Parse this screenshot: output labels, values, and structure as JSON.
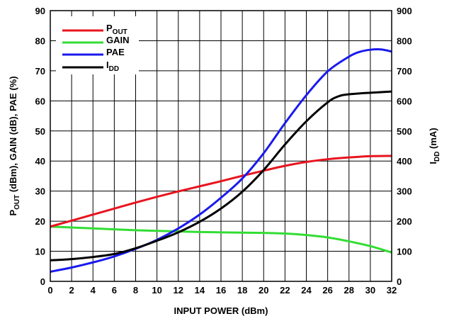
{
  "chart_data": {
    "type": "line",
    "xlabel": "INPUT POWER (dBm)",
    "ylabel_left": {
      "main": "P",
      "sub": "OUT",
      "rest": " (dBm), GAIN (dB), PAE (%)"
    },
    "ylabel_right": {
      "main": "I",
      "sub": "DD",
      "rest": " (mA)"
    },
    "xlim": [
      0,
      32
    ],
    "ylim_left": [
      0,
      90
    ],
    "ylim_right": [
      0,
      900
    ],
    "grid": true,
    "legend_position": "top-left",
    "x_ticks": [
      "0",
      "2",
      "4",
      "6",
      "8",
      "10",
      "12",
      "14",
      "16",
      "18",
      "20",
      "22",
      "24",
      "26",
      "28",
      "30",
      "32"
    ],
    "y_ticks_left": [
      "0",
      "10",
      "20",
      "30",
      "40",
      "50",
      "60",
      "70",
      "80",
      "90"
    ],
    "y_ticks_right": [
      "0",
      "100",
      "200",
      "300",
      "400",
      "500",
      "600",
      "700",
      "800",
      "900"
    ],
    "series": [
      {
        "name": "P",
        "name_sub": "OUT",
        "axis": "left",
        "color": "#e8141e",
        "x": [
          0,
          2,
          4,
          6,
          8,
          10,
          12,
          14,
          16,
          18,
          20,
          22,
          24,
          26,
          28,
          30,
          32
        ],
        "y": [
          18.2,
          20.2,
          22.2,
          24.2,
          26.2,
          28.1,
          29.9,
          31.6,
          33.3,
          35.1,
          36.8,
          38.4,
          39.7,
          40.6,
          41.2,
          41.6,
          41.7
        ]
      },
      {
        "name": "GAIN",
        "name_sub": "",
        "axis": "left",
        "color": "#33dd33",
        "x": [
          0,
          2,
          4,
          6,
          8,
          10,
          12,
          14,
          16,
          18,
          20,
          22,
          24,
          26,
          28,
          30,
          32
        ],
        "y": [
          18.2,
          17.9,
          17.6,
          17.3,
          17.0,
          16.8,
          16.6,
          16.4,
          16.3,
          16.2,
          16.1,
          15.9,
          15.4,
          14.6,
          13.3,
          11.7,
          9.6
        ]
      },
      {
        "name": "PAE",
        "name_sub": "",
        "axis": "left",
        "color": "#1a1aee",
        "x": [
          0,
          2,
          4,
          6,
          8,
          10,
          12,
          14,
          16,
          18,
          20,
          22,
          24,
          26,
          28,
          29,
          30,
          31,
          32
        ],
        "y": [
          3.2,
          4.6,
          6.3,
          8.3,
          10.8,
          13.8,
          17.6,
          22.2,
          27.8,
          34.2,
          42.6,
          52.6,
          61.9,
          69.8,
          74.7,
          76.3,
          77.0,
          77.1,
          76.4
        ]
      },
      {
        "name": "I",
        "name_sub": "DD",
        "axis": "right",
        "color": "#000000",
        "x": [
          0,
          2,
          4,
          6,
          8,
          10,
          12,
          14,
          16,
          18,
          20,
          22,
          24,
          26,
          27,
          28,
          30,
          32
        ],
        "y": [
          70,
          74,
          81,
          91,
          110,
          135,
          163,
          198,
          242,
          298,
          370,
          455,
          532,
          595,
          615,
          622,
          627,
          631
        ]
      }
    ]
  }
}
